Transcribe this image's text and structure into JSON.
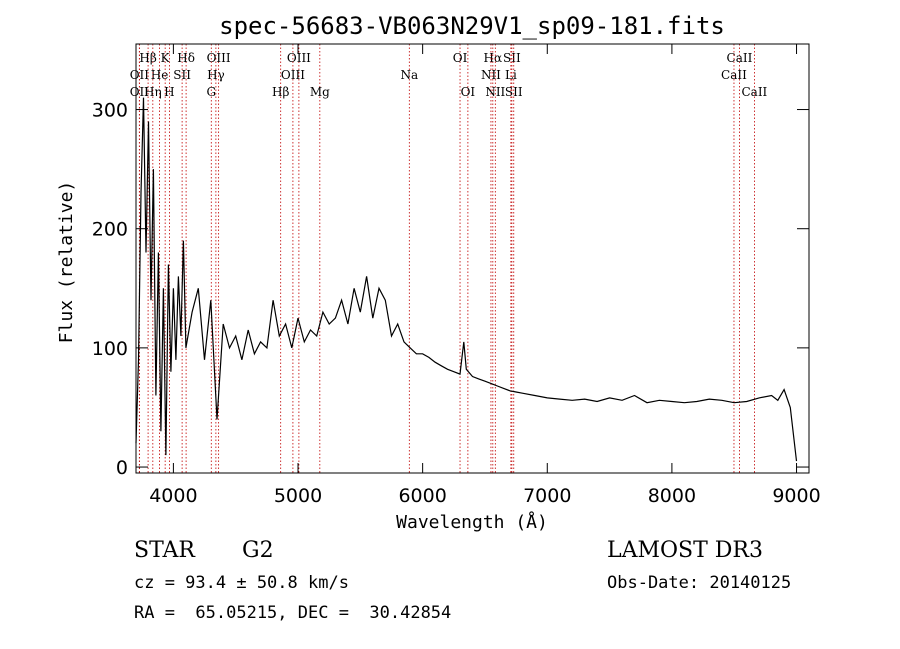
{
  "chart_data": {
    "type": "line",
    "title": "spec-56683-VB063N29V1_sp09-181.fits",
    "xlabel": "Wavelength (Å)",
    "ylabel": "Flux (relative)",
    "xlim": [
      3700,
      9100
    ],
    "ylim": [
      -5,
      355
    ],
    "xticks": [
      4000,
      5000,
      6000,
      7000,
      8000,
      9000
    ],
    "yticks": [
      0,
      100,
      200,
      300
    ],
    "series": [
      {
        "name": "flux",
        "x": [
          3700,
          3720,
          3740,
          3760,
          3780,
          3800,
          3820,
          3840,
          3860,
          3880,
          3900,
          3920,
          3940,
          3960,
          3980,
          4000,
          4020,
          4040,
          4060,
          4080,
          4100,
          4150,
          4200,
          4250,
          4300,
          4350,
          4400,
          4450,
          4500,
          4550,
          4600,
          4650,
          4700,
          4750,
          4800,
          4850,
          4900,
          4950,
          5000,
          5050,
          5100,
          5150,
          5200,
          5250,
          5300,
          5350,
          5400,
          5450,
          5500,
          5550,
          5600,
          5650,
          5700,
          5750,
          5800,
          5850,
          5900,
          5950,
          6000,
          6050,
          6100,
          6150,
          6200,
          6250,
          6300,
          6330,
          6350,
          6400,
          6450,
          6500,
          6550,
          6600,
          6650,
          6700,
          6750,
          6800,
          6900,
          7000,
          7100,
          7200,
          7300,
          7400,
          7500,
          7600,
          7700,
          7800,
          7900,
          8000,
          8100,
          8200,
          8300,
          8400,
          8500,
          8600,
          8700,
          8800,
          8850,
          8900,
          8950,
          9000
        ],
        "y": [
          20,
          90,
          230,
          310,
          180,
          290,
          140,
          250,
          60,
          180,
          30,
          150,
          10,
          170,
          80,
          150,
          90,
          160,
          110,
          190,
          100,
          130,
          150,
          90,
          140,
          40,
          120,
          100,
          110,
          90,
          115,
          95,
          105,
          100,
          140,
          110,
          120,
          100,
          125,
          105,
          115,
          110,
          130,
          120,
          125,
          140,
          120,
          150,
          130,
          160,
          125,
          150,
          140,
          110,
          120,
          105,
          100,
          95,
          95,
          92,
          88,
          85,
          82,
          80,
          78,
          105,
          82,
          76,
          74,
          72,
          70,
          68,
          66,
          64,
          63,
          62,
          60,
          58,
          57,
          56,
          57,
          55,
          58,
          56,
          60,
          54,
          56,
          55,
          54,
          55,
          57,
          56,
          54,
          55,
          58,
          60,
          56,
          65,
          50,
          5
        ]
      }
    ],
    "line_markers": [
      {
        "label": "Hβ",
        "x": 3797,
        "row": 1
      },
      {
        "label": "K",
        "x": 3934,
        "row": 1
      },
      {
        "label": "Hδ",
        "x": 4102,
        "row": 1
      },
      {
        "label": "OIII",
        "x": 4363,
        "row": 1
      },
      {
        "label": "OIII",
        "x": 5007,
        "row": 1
      },
      {
        "label": "OI",
        "x": 6300,
        "row": 1
      },
      {
        "label": "Hα",
        "x": 6563,
        "row": 1
      },
      {
        "label": "SII",
        "x": 6716,
        "row": 1
      },
      {
        "label": "CaII",
        "x": 8542,
        "row": 1
      },
      {
        "label": "OII",
        "x": 3727,
        "row": 2
      },
      {
        "label": "He",
        "x": 3889,
        "row": 2
      },
      {
        "label": "SII",
        "x": 4070,
        "row": 2
      },
      {
        "label": "Hγ",
        "x": 4341,
        "row": 2
      },
      {
        "label": "OIII",
        "x": 4959,
        "row": 2
      },
      {
        "label": "Na",
        "x": 5893,
        "row": 2
      },
      {
        "label": "NII",
        "x": 6548,
        "row": 2
      },
      {
        "label": "Li",
        "x": 6708,
        "row": 2
      },
      {
        "label": "CaII",
        "x": 8498,
        "row": 2
      },
      {
        "label": "OII",
        "x": 3727,
        "row": 3
      },
      {
        "label": "Hη",
        "x": 3835,
        "row": 3
      },
      {
        "label": "H",
        "x": 3968,
        "row": 3
      },
      {
        "label": "G",
        "x": 4304,
        "row": 3
      },
      {
        "label": "Hβ",
        "x": 4861,
        "row": 3
      },
      {
        "label": "Mg",
        "x": 5175,
        "row": 3
      },
      {
        "label": "OI",
        "x": 6363,
        "row": 3
      },
      {
        "label": "NII",
        "x": 6583,
        "row": 3
      },
      {
        "label": "SII",
        "x": 6731,
        "row": 3
      },
      {
        "label": "CaII",
        "x": 8662,
        "row": 3
      }
    ]
  },
  "info": {
    "object_type": "STAR",
    "subclass": "G2",
    "survey": "LAMOST DR3",
    "cz": "cz = 93.4 ± 50.8 km/s",
    "obs_date": "Obs-Date: 20140125",
    "coords": "RA =  65.05215, DEC =  30.42854"
  },
  "colors": {
    "spectrum": "#000000",
    "marker_line": "#c00000",
    "axes": "#000000"
  }
}
